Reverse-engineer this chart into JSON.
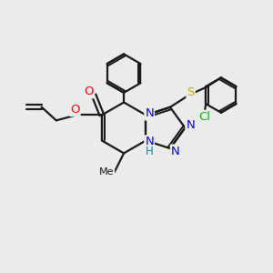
{
  "bg_color": "#ebebeb",
  "bond_color": "#1a1a1a",
  "bond_width": 1.6,
  "atom_colors": {
    "N": "#0000ff",
    "O": "#ff0000",
    "S": "#ccaa00",
    "Cl": "#00bb00",
    "C": "#1a1a1a",
    "H": "#009090"
  },
  "font_size": 8.5,
  "fig_size": [
    3.0,
    3.0
  ],
  "dpi": 100
}
